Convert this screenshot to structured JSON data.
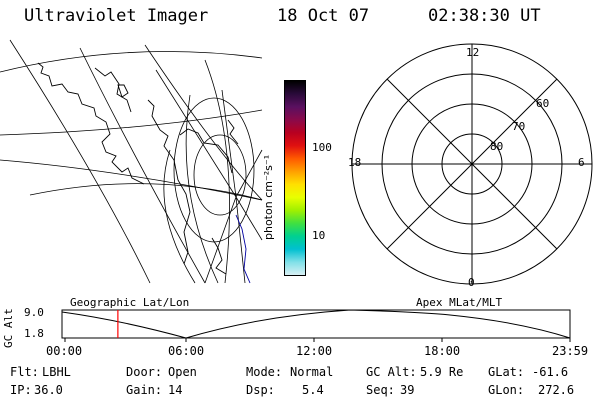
{
  "header": {
    "instrument": "Ultraviolet Imager",
    "date": "18 Oct 07",
    "time": "02:38:30 UT"
  },
  "colorbar": {
    "label": "photon cm⁻²s⁻¹",
    "ticks": [
      "100",
      "10"
    ],
    "colors": [
      "#000000",
      "#2a0a3a",
      "#5a1060",
      "#8a0a4a",
      "#b80020",
      "#e01010",
      "#ff5a00",
      "#ffa000",
      "#ffe000",
      "#e8ff00",
      "#a0f000",
      "#40e040",
      "#00d090",
      "#00c0d0",
      "#80e0e8",
      "#d8f0f4"
    ]
  },
  "polar_plot": {
    "mlt_labels": [
      "12",
      "18",
      "6",
      "0"
    ],
    "lat_labels": [
      "60",
      "70",
      "80"
    ]
  },
  "timeline": {
    "left_label": "Geographic Lat/Lon",
    "right_label": "Apex MLat/MLT",
    "axis_title": "GC Alt",
    "y_ticks": [
      "9.0",
      "1.8"
    ],
    "x_ticks": [
      "00:00",
      "06:00",
      "12:00",
      "18:00",
      "23:59"
    ],
    "current_time_fraction": 0.11
  },
  "footer": {
    "flt_label": "Flt:",
    "flt_value": "LBHL",
    "ip_label": "IP:",
    "ip_value": "36.0",
    "door_label": "Door:",
    "door_value": "Open",
    "gain_label": "Gain:",
    "gain_value": "14",
    "mode_label": "Mode:",
    "mode_value": "Normal",
    "dsp_label": "Dsp:",
    "dsp_value": "5.4",
    "gcalt_label": "GC Alt:",
    "gcalt_value": "5.9 Re",
    "seq_label": "Seq:",
    "seq_value": "39",
    "glat_label": "GLat:",
    "glat_value": "-61.6",
    "glon_label": "GLon:",
    "glon_value": "272.6"
  }
}
